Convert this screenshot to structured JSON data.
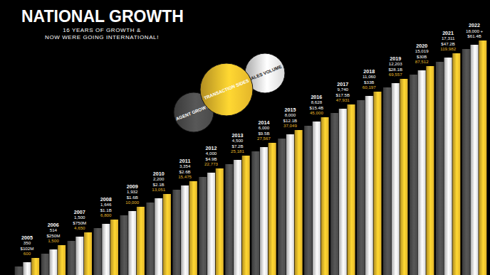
{
  "chart_data": {
    "type": "bar",
    "title": "NATIONAL GROWTH",
    "subtitle": [
      "16 YEARS OF GROWTH &",
      "NOW WERE GOING INTERNATIONAL!"
    ],
    "categories": [
      "2005",
      "2006",
      "2007",
      "2008",
      "2009",
      "2010",
      "2011",
      "2012",
      "2013",
      "2014",
      "2015",
      "2016",
      "2017",
      "2018",
      "2019",
      "2020",
      "2021",
      "2022"
    ],
    "series": [
      {
        "name": "AGENT GROWTH",
        "color": "#4a4a4a",
        "values": [
          350,
          514,
          1500,
          1646,
          1932,
          2200,
          3354,
          4000,
          4500,
          6000,
          8000,
          8628,
          9740,
          11060,
          12203,
          15019,
          17311,
          18000
        ],
        "value_labels": [
          "350",
          "514",
          "1,500",
          "1,646",
          "1,932",
          "2,200",
          "3,354",
          "4,000",
          "4,500",
          "6,000",
          "8,000",
          "8,628",
          "9,740",
          "11,060",
          "12,203",
          "15,019",
          "17,311",
          "18,000 +"
        ]
      },
      {
        "name": "SALES VOLUME",
        "color": "#d9d9d9",
        "values": [
          102000000,
          250000000,
          750000000,
          1100000000,
          1600000000,
          2100000000,
          2600000000,
          4900000000,
          7200000000,
          9500000000,
          12100000000,
          15400000000,
          17500000000,
          33000000000,
          28100000000,
          30000000000,
          47200000000,
          61400000000
        ],
        "value_labels": [
          "$102M",
          "$250M",
          "$750M",
          "$1.1B",
          "$1.6B",
          "$2.1B",
          "$2.6B",
          "$4.9B",
          "$7.2B",
          "$9.5B",
          "$12.1B",
          "$15.4B",
          "$17.5B",
          "$33B",
          "$28.1B",
          "$30B",
          "$47.2B",
          "$61.4B"
        ]
      },
      {
        "name": "TRANSACTION SIDES",
        "color": "#e3b52a",
        "values": [
          600,
          1500,
          4650,
          6800,
          10000,
          13051,
          15475,
          22773,
          25181,
          27567,
          37049,
          45000,
          47931,
          60197,
          69557,
          87512,
          119982,
          null
        ],
        "value_labels": [
          "600",
          "1,500",
          "4,650",
          "6,800",
          "10,000",
          "13,051",
          "15,475",
          "22,773",
          "25,181",
          "27,567",
          "37,049",
          "45,000",
          "47,931",
          "60,197",
          "69,557",
          "87,512",
          "119,982",
          null
        ]
      }
    ],
    "data_labels": true,
    "tick_labels": false,
    "legend": "top"
  }
}
